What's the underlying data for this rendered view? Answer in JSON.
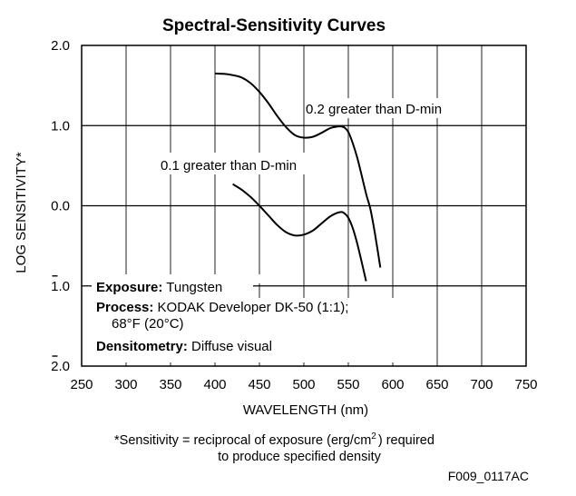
{
  "chart_data": {
    "type": "line",
    "title": "Spectral-Sensitivity Curves",
    "xlabel": "WAVELENGTH (nm)",
    "ylabel": "LOG SENSITIVITY*",
    "xlim": [
      250,
      750
    ],
    "ylim": [
      -2.0,
      2.0
    ],
    "grid": true,
    "x_ticks": [
      250,
      300,
      350,
      400,
      450,
      500,
      550,
      600,
      650,
      700,
      750
    ],
    "x_tick_labels": [
      "250",
      "300",
      "350",
      "400",
      "450",
      "500",
      "550",
      "600",
      "650",
      "700",
      "750"
    ],
    "y_ticks": [
      2.0,
      1.0,
      0.0,
      -1.0,
      -2.0
    ],
    "y_tick_labels": [
      {
        "digit": "2",
        "rest": ".0",
        "negative_bar": false
      },
      {
        "digit": "1",
        "rest": ".0",
        "negative_bar": false
      },
      {
        "digit": "0",
        "rest": ".0",
        "negative_bar": false
      },
      {
        "digit": "1",
        "rest": ".0",
        "negative_bar": true
      },
      {
        "digit": "2",
        "rest": ".0",
        "negative_bar": true
      }
    ],
    "series": [
      {
        "name": "0.2 greater than D-min",
        "x": [
          400,
          410,
          420,
          430,
          440,
          450,
          460,
          470,
          480,
          490,
          500,
          510,
          520,
          530,
          540,
          545,
          550,
          555,
          560,
          565,
          570,
          575,
          580,
          586
        ],
        "y": [
          1.65,
          1.645,
          1.63,
          1.6,
          1.53,
          1.42,
          1.28,
          1.12,
          0.98,
          0.88,
          0.85,
          0.86,
          0.91,
          0.97,
          0.99,
          0.98,
          0.92,
          0.78,
          0.6,
          0.38,
          0.15,
          -0.05,
          -0.35,
          -0.77
        ]
      },
      {
        "name": "0.1 greater than D-min",
        "x": [
          420,
          430,
          440,
          450,
          460,
          470,
          480,
          490,
          500,
          510,
          520,
          530,
          540,
          545,
          550,
          555,
          560,
          565,
          570
        ],
        "y": [
          0.27,
          0.2,
          0.11,
          0.0,
          -0.12,
          -0.24,
          -0.33,
          -0.37,
          -0.36,
          -0.31,
          -0.22,
          -0.13,
          -0.08,
          -0.09,
          -0.15,
          -0.28,
          -0.47,
          -0.7,
          -0.94
        ]
      }
    ],
    "annotations": [
      {
        "text": "0.2 greater than D-min",
        "x": 504,
        "y": 1.2
      },
      {
        "text": "0.1 greater than D-min",
        "x": 340,
        "y": 0.5
      }
    ],
    "info_box": {
      "exposure_label": "Exposure:",
      "exposure_value": "Tungsten",
      "process_label": "Process:",
      "process_value": "KODAK Developer DK-50 (1:1);",
      "process_value_line2": "68°F (20°C)",
      "densitometry_label": "Densitometry:",
      "densitometry_value": "Diffuse visual"
    },
    "footnote": {
      "line1_pre": "*Sensitivity = reciprocal of exposure (erg/cm",
      "superscript": "2",
      "line1_post": ") required",
      "line2": "to produce specified density"
    },
    "figure_code": "F009_0117AC"
  }
}
